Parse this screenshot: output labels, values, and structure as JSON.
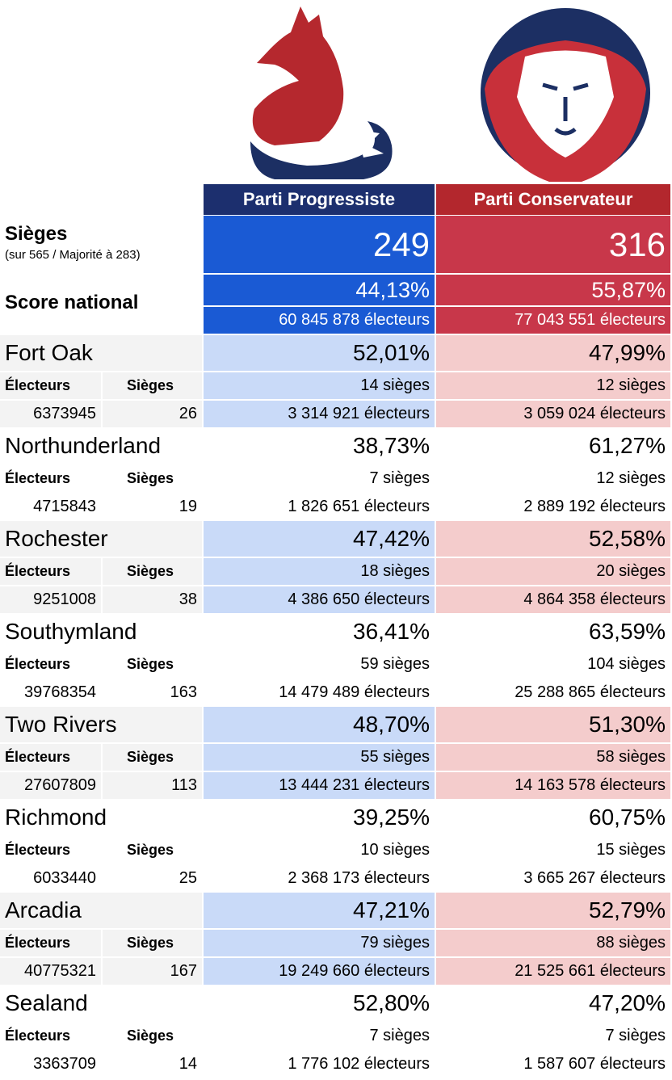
{
  "header": {
    "parties": [
      "Parti Progressiste",
      "Parti Conservateur"
    ],
    "seats_label": "Sièges",
    "seats_note": "(sur 565 / Majorité à 283)",
    "score_label": "Score national",
    "seats": [
      249,
      316
    ],
    "percents": [
      "44,13%",
      "55,87%"
    ],
    "voters": [
      "60 845 878 électeurs",
      "77 043 551 électeurs"
    ]
  },
  "regions": [
    {
      "name": "Fort Oak",
      "labels": [
        "Électeurs",
        "Sièges"
      ],
      "voters": 6373945,
      "seats": 26,
      "results": [
        {
          "percent": "52,01%",
          "seats": "14 sièges",
          "voters": "3 314 921 électeurs"
        },
        {
          "percent": "47,99%",
          "seats": "12 sièges",
          "voters": "3 059 024 électeurs"
        }
      ]
    },
    {
      "name": "Northunderland",
      "labels": [
        "Électeurs",
        "Sièges"
      ],
      "voters": 4715843,
      "seats": 19,
      "results": [
        {
          "percent": "38,73%",
          "seats": "7 sièges",
          "voters": "1 826 651 électeurs"
        },
        {
          "percent": "61,27%",
          "seats": "12 sièges",
          "voters": "2 889 192 électeurs"
        }
      ]
    },
    {
      "name": "Rochester",
      "labels": [
        "Électeurs",
        "Sièges"
      ],
      "voters": 9251008,
      "seats": 38,
      "results": [
        {
          "percent": "47,42%",
          "seats": "18 sièges",
          "voters": "4 386 650 électeurs"
        },
        {
          "percent": "52,58%",
          "seats": "20 sièges",
          "voters": "4 864 358 électeurs"
        }
      ]
    },
    {
      "name": "Southymland",
      "labels": [
        "Électeurs",
        "Sièges"
      ],
      "voters": 39768354,
      "seats": 163,
      "results": [
        {
          "percent": "36,41%",
          "seats": "59 sièges",
          "voters": "14 479 489 électeurs"
        },
        {
          "percent": "63,59%",
          "seats": "104 sièges",
          "voters": "25 288 865 électeurs"
        }
      ]
    },
    {
      "name": "Two Rivers",
      "labels": [
        "Électeurs",
        "Sièges"
      ],
      "voters": 27607809,
      "seats": 113,
      "results": [
        {
          "percent": "48,70%",
          "seats": "55 sièges",
          "voters": "13 444 231 électeurs"
        },
        {
          "percent": "51,30%",
          "seats": "58 sièges",
          "voters": "14 163 578 électeurs"
        }
      ]
    },
    {
      "name": "Richmond",
      "labels": [
        "Électeurs",
        "Sièges"
      ],
      "voters": 6033440,
      "seats": 25,
      "results": [
        {
          "percent": "39,25%",
          "seats": "10 sièges",
          "voters": "2 368 173 électeurs"
        },
        {
          "percent": "60,75%",
          "seats": "15 sièges",
          "voters": "3 665 267 électeurs"
        }
      ]
    },
    {
      "name": "Arcadia",
      "labels": [
        "Électeurs",
        "Sièges"
      ],
      "voters": 40775321,
      "seats": 167,
      "results": [
        {
          "percent": "47,21%",
          "seats": "79 sièges",
          "voters": "19 249 660 électeurs"
        },
        {
          "percent": "52,79%",
          "seats": "88 sièges",
          "voters": "21 525 661 électeurs"
        }
      ]
    },
    {
      "name": "Sealand",
      "labels": [
        "Électeurs",
        "Sièges"
      ],
      "voters": 3363709,
      "seats": 14,
      "results": [
        {
          "percent": "52,80%",
          "seats": "7 sièges",
          "voters": "1 776 102 électeurs"
        },
        {
          "percent": "47,20%",
          "seats": "7 sièges",
          "voters": "1 587 607 électeurs"
        }
      ]
    }
  ]
}
